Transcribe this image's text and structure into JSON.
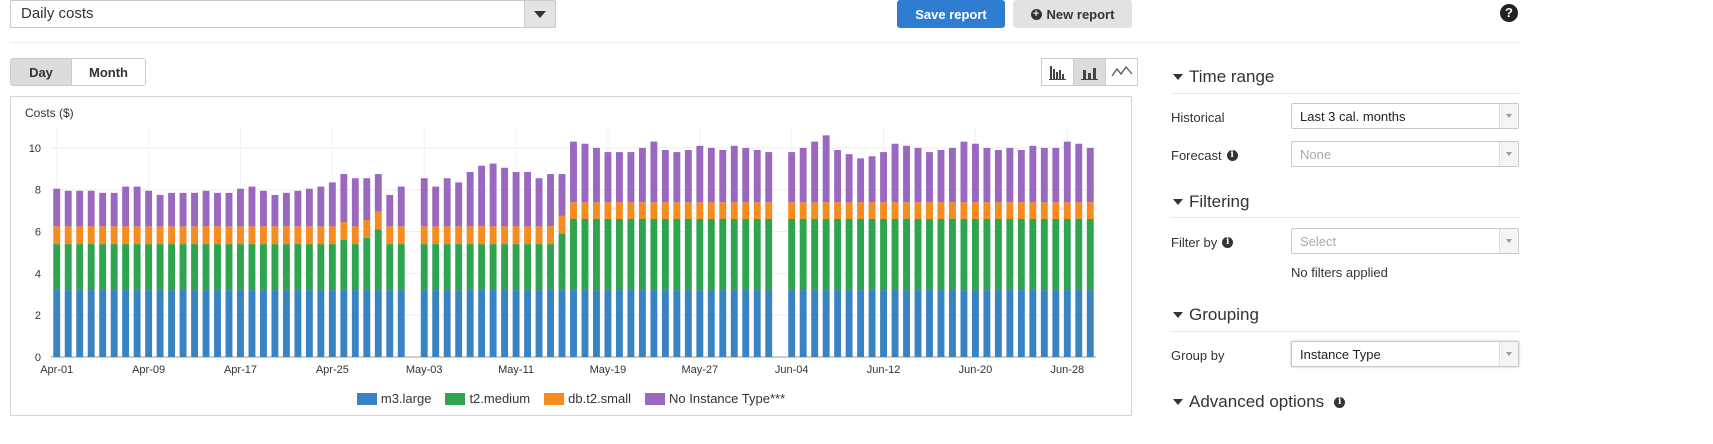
{
  "header": {
    "report_select": "Daily costs",
    "save_label": "Save report",
    "new_label": "New report",
    "help_symbol": "?"
  },
  "view": {
    "day_label": "Day",
    "month_label": "Month",
    "selected": "Day",
    "chart_types": [
      {
        "name": "grouped-bar-icon",
        "active": false
      },
      {
        "name": "stacked-bar-icon",
        "active": true
      },
      {
        "name": "line-chart-icon",
        "active": false
      }
    ]
  },
  "chart_data": {
    "type": "bar",
    "stacked": true,
    "ylabel": "Costs ($)",
    "ylim": [
      0,
      11
    ],
    "yticks": [
      0,
      2,
      4,
      6,
      8,
      10
    ],
    "xticks": [
      "Apr-01",
      "Apr-09",
      "Apr-17",
      "Apr-25",
      "May-03",
      "May-11",
      "May-19",
      "May-27",
      "Jun-04",
      "Jun-12",
      "Jun-20",
      "Jun-28"
    ],
    "start_date": "Apr-01",
    "days": 91,
    "gap_days": [
      31,
      63
    ],
    "legend_placement": "bottom",
    "series": [
      {
        "name": "m3.large",
        "color": "#3a83c3",
        "values": [
          3.2,
          3.2,
          3.2,
          3.2,
          3.2,
          3.2,
          3.2,
          3.2,
          3.2,
          3.2,
          3.2,
          3.2,
          3.2,
          3.2,
          3.2,
          3.2,
          3.2,
          3.2,
          3.2,
          3.2,
          3.2,
          3.2,
          3.2,
          3.2,
          3.2,
          3.2,
          3.2,
          3.2,
          3.2,
          3.2,
          3.2,
          0,
          3.2,
          3.2,
          3.2,
          3.2,
          3.2,
          3.2,
          3.2,
          3.2,
          3.2,
          3.2,
          3.2,
          3.2,
          3.2,
          3.2,
          3.2,
          3.2,
          3.2,
          3.2,
          3.2,
          3.2,
          3.2,
          3.2,
          3.2,
          3.2,
          3.2,
          3.2,
          3.2,
          3.2,
          3.2,
          3.2,
          3.2,
          0,
          3.2,
          3.2,
          3.2,
          3.2,
          3.2,
          3.2,
          3.2,
          3.2,
          3.2,
          3.2,
          3.2,
          3.2,
          3.2,
          3.2,
          3.2,
          3.2,
          3.2,
          3.2,
          3.2,
          3.2,
          3.2,
          3.2,
          3.2,
          3.2,
          3.2,
          3.2,
          3.2
        ]
      },
      {
        "name": "t2.medium",
        "color": "#2ea44f",
        "values": [
          2.2,
          2.2,
          2.2,
          2.2,
          2.2,
          2.2,
          2.2,
          2.2,
          2.2,
          2.2,
          2.2,
          2.2,
          2.2,
          2.2,
          2.2,
          2.2,
          2.2,
          2.2,
          2.2,
          2.2,
          2.2,
          2.2,
          2.2,
          2.2,
          2.2,
          2.4,
          2.2,
          2.5,
          2.9,
          2.2,
          2.2,
          0,
          2.2,
          2.2,
          2.2,
          2.2,
          2.2,
          2.2,
          2.2,
          2.2,
          2.2,
          2.2,
          2.2,
          2.2,
          2.7,
          3.4,
          3.4,
          3.4,
          3.4,
          3.4,
          3.4,
          3.4,
          3.4,
          3.4,
          3.4,
          3.4,
          3.4,
          3.4,
          3.4,
          3.4,
          3.4,
          3.4,
          3.4,
          0,
          3.4,
          3.4,
          3.4,
          3.4,
          3.4,
          3.4,
          3.4,
          3.4,
          3.4,
          3.4,
          3.4,
          3.4,
          3.4,
          3.4,
          3.4,
          3.4,
          3.4,
          3.4,
          3.4,
          3.4,
          3.4,
          3.4,
          3.4,
          3.4,
          3.4,
          3.4,
          3.4
        ]
      },
      {
        "name": "db.t2.small",
        "color": "#f68b1f",
        "values": [
          0.85,
          0.85,
          0.85,
          0.85,
          0.85,
          0.85,
          0.85,
          0.85,
          0.85,
          0.85,
          0.85,
          0.85,
          0.85,
          0.85,
          0.85,
          0.85,
          0.85,
          0.85,
          0.85,
          0.85,
          0.85,
          0.85,
          0.85,
          0.85,
          0.85,
          0.85,
          0.85,
          0.85,
          0.85,
          0.85,
          0.85,
          0,
          0.85,
          0.85,
          0.85,
          0.85,
          0.85,
          0.85,
          0.85,
          0.85,
          0.85,
          0.85,
          0.85,
          0.85,
          0.85,
          0.8,
          0.8,
          0.8,
          0.8,
          0.8,
          0.8,
          0.8,
          0.8,
          0.8,
          0.8,
          0.8,
          0.8,
          0.8,
          0.8,
          0.8,
          0.8,
          0.8,
          0.8,
          0,
          0.8,
          0.8,
          0.8,
          0.8,
          0.8,
          0.8,
          0.8,
          0.8,
          0.8,
          0.8,
          0.8,
          0.8,
          0.8,
          0.8,
          0.8,
          0.8,
          0.8,
          0.8,
          0.8,
          0.8,
          0.8,
          0.8,
          0.8,
          0.8,
          0.8,
          0.8,
          0.8
        ]
      },
      {
        "name": "No Instance Type***",
        "color": "#9a68bf",
        "values": [
          1.8,
          1.7,
          1.7,
          1.7,
          1.6,
          1.6,
          1.9,
          1.9,
          1.7,
          1.5,
          1.6,
          1.6,
          1.6,
          1.7,
          1.6,
          1.6,
          1.8,
          1.9,
          1.7,
          1.5,
          1.6,
          1.7,
          1.8,
          1.9,
          2.1,
          2.3,
          2.3,
          2.0,
          1.8,
          1.5,
          1.9,
          0,
          2.3,
          1.9,
          2.3,
          2.1,
          2.6,
          2.9,
          3.0,
          2.8,
          2.6,
          2.6,
          2.3,
          2.5,
          2.0,
          2.9,
          2.8,
          2.6,
          2.4,
          2.4,
          2.4,
          2.6,
          2.9,
          2.5,
          2.4,
          2.5,
          2.7,
          2.6,
          2.5,
          2.7,
          2.6,
          2.5,
          2.4,
          0,
          2.4,
          2.6,
          2.9,
          3.2,
          2.5,
          2.3,
          2.1,
          2.2,
          2.4,
          2.8,
          2.7,
          2.6,
          2.4,
          2.5,
          2.6,
          2.9,
          2.8,
          2.6,
          2.5,
          2.6,
          2.5,
          2.7,
          2.6,
          2.6,
          2.9,
          2.8,
          2.6
        ]
      }
    ]
  },
  "sidebar": {
    "time_range_title": "Time range",
    "historical_label": "Historical",
    "historical_value": "Last 3 cal. months",
    "forecast_label": "Forecast",
    "forecast_value": "None",
    "filtering_title": "Filtering",
    "filter_by_label": "Filter by",
    "filter_by_placeholder": "Select",
    "filters_status": "No filters applied",
    "grouping_title": "Grouping",
    "group_by_label": "Group by",
    "group_by_value": "Instance Type",
    "advanced_title": "Advanced options",
    "info_symbol": "i"
  }
}
